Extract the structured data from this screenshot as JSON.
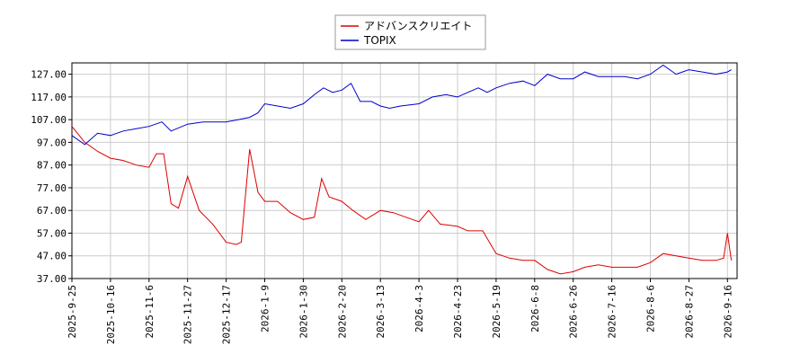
{
  "chart_data": {
    "type": "line",
    "grid": true,
    "legend": "upper center",
    "ylim": [
      37,
      132
    ],
    "yticks": [
      {
        "value": 37,
        "label": "37.00"
      },
      {
        "value": 47,
        "label": "47.00"
      },
      {
        "value": 57,
        "label": "57.00"
      },
      {
        "value": 67,
        "label": "67.00"
      },
      {
        "value": 77,
        "label": "77.00"
      },
      {
        "value": 87,
        "label": "87.00"
      },
      {
        "value": 97,
        "label": "97.00"
      },
      {
        "value": 107,
        "label": "107.00"
      },
      {
        "value": 117,
        "label": "117.00"
      },
      {
        "value": 127,
        "label": "127.00"
      }
    ],
    "xticks": [
      "2025-9-25",
      "2025-10-16",
      "2025-11-6",
      "2025-11-27",
      "2025-12-17",
      "2026-1-9",
      "2026-1-30",
      "2026-2-20",
      "2026-3-13",
      "2026-4-3",
      "2026-4-23",
      "2026-5-19",
      "2026-6-8",
      "2026-6-26",
      "2026-7-16",
      "2026-8-6",
      "2026-8-27",
      "2026-9-16"
    ],
    "series": [
      {
        "name": "アドバンスクリエイト",
        "color": "#dd0000",
        "x": [
          "2025-9-25",
          "2025-10-2",
          "2025-10-9",
          "2025-10-16",
          "2025-10-23",
          "2025-10-30",
          "2025-11-6",
          "2025-11-10",
          "2025-11-14",
          "2025-11-18",
          "2025-11-22",
          "2025-11-27",
          "2025-12-3",
          "2025-12-10",
          "2025-12-17",
          "2025-12-23",
          "2025-12-26",
          "2025-12-31",
          "2026-1-5",
          "2026-1-9",
          "2026-1-16",
          "2026-1-23",
          "2026-1-30",
          "2026-2-5",
          "2026-2-9",
          "2026-2-13",
          "2026-2-20",
          "2026-2-26",
          "2026-3-5",
          "2026-3-13",
          "2026-3-20",
          "2026-3-27",
          "2026-4-3",
          "2026-4-8",
          "2026-4-14",
          "2026-4-23",
          "2026-4-30",
          "2026-5-10",
          "2026-5-19",
          "2026-5-26",
          "2026-6-2",
          "2026-6-8",
          "2026-6-14",
          "2026-6-20",
          "2026-6-26",
          "2026-7-2",
          "2026-7-9",
          "2026-7-16",
          "2026-7-23",
          "2026-7-30",
          "2026-8-6",
          "2026-8-13",
          "2026-8-20",
          "2026-8-27",
          "2026-9-3",
          "2026-9-10",
          "2026-9-14",
          "2026-9-16",
          "2026-9-18"
        ],
        "values": [
          104,
          97,
          93,
          90,
          89,
          87,
          86,
          92,
          92,
          70,
          68,
          82,
          67,
          61,
          53,
          52,
          53,
          94,
          75,
          71,
          71,
          66,
          63,
          64,
          81,
          73,
          71,
          67,
          63,
          67,
          66,
          64,
          62,
          67,
          61,
          60,
          58,
          58,
          48,
          46,
          45,
          45,
          41,
          39,
          40,
          42,
          43,
          42,
          42,
          42,
          44,
          48,
          47,
          46,
          45,
          45,
          46,
          57,
          45
        ]
      },
      {
        "name": "TOPIX",
        "color": "#0000cc",
        "x": [
          "2025-9-25",
          "2025-10-2",
          "2025-10-9",
          "2025-10-16",
          "2025-10-23",
          "2025-10-30",
          "2025-11-6",
          "2025-11-13",
          "2025-11-18",
          "2025-11-27",
          "2025-12-5",
          "2025-12-12",
          "2025-12-17",
          "2025-12-24",
          "2025-12-31",
          "2026-1-5",
          "2026-1-9",
          "2026-1-16",
          "2026-1-23",
          "2026-1-30",
          "2026-2-5",
          "2026-2-10",
          "2026-2-15",
          "2026-2-20",
          "2026-2-25",
          "2026-3-2",
          "2026-3-8",
          "2026-3-13",
          "2026-3-18",
          "2026-3-24",
          "2026-4-3",
          "2026-4-10",
          "2026-4-17",
          "2026-4-23",
          "2026-4-30",
          "2026-5-7",
          "2026-5-13",
          "2026-5-19",
          "2026-5-26",
          "2026-6-2",
          "2026-6-8",
          "2026-6-14",
          "2026-6-20",
          "2026-6-26",
          "2026-7-2",
          "2026-7-9",
          "2026-7-16",
          "2026-7-23",
          "2026-7-30",
          "2026-8-6",
          "2026-8-13",
          "2026-8-20",
          "2026-8-27",
          "2026-9-3",
          "2026-9-10",
          "2026-9-16",
          "2026-9-18"
        ],
        "values": [
          100,
          96,
          101,
          100,
          102,
          103,
          104,
          106,
          102,
          105,
          106,
          106,
          106,
          107,
          108,
          110,
          114,
          113,
          112,
          114,
          118,
          121,
          119,
          120,
          123,
          115,
          115,
          113,
          112,
          113,
          114,
          117,
          118,
          117,
          119,
          121,
          119,
          121,
          123,
          124,
          122,
          127,
          125,
          125,
          128,
          126,
          126,
          126,
          125,
          127,
          131,
          127,
          129,
          128,
          127,
          128,
          129
        ]
      }
    ]
  }
}
